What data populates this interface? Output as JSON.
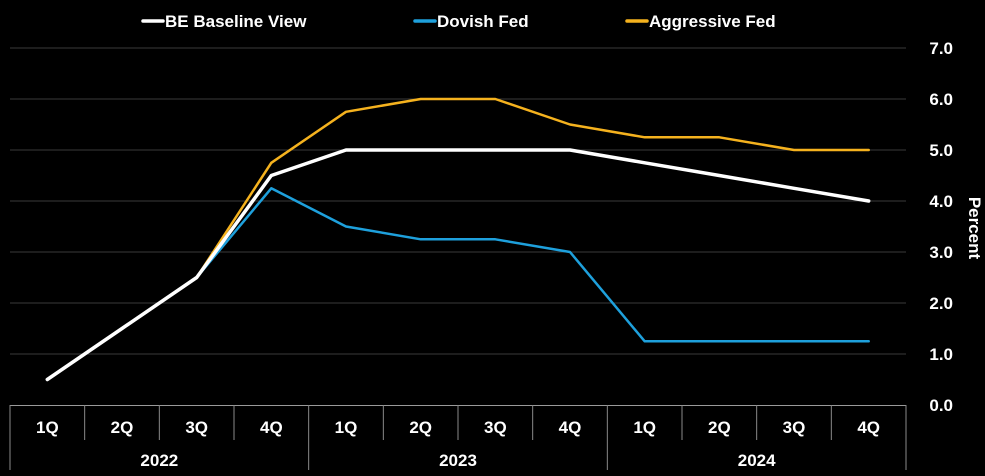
{
  "chart_data": {
    "type": "line",
    "ylabel": "Percent",
    "ylim": [
      0,
      7
    ],
    "y_ticks": [
      "0.0",
      "1.0",
      "2.0",
      "3.0",
      "4.0",
      "5.0",
      "6.0",
      "7.0"
    ],
    "y_axis_side": "right",
    "grid": true,
    "legend_position": "top",
    "categories": [
      "1Q",
      "2Q",
      "3Q",
      "4Q",
      "1Q",
      "2Q",
      "3Q",
      "4Q",
      "1Q",
      "2Q",
      "3Q",
      "4Q"
    ],
    "year_groups": [
      {
        "label": "2022",
        "span": 4
      },
      {
        "label": "2023",
        "span": 4
      },
      {
        "label": "2024",
        "span": 4
      }
    ],
    "series": [
      {
        "name": "BE Baseline View",
        "color": "#ffffff",
        "values": [
          0.5,
          1.5,
          2.5,
          4.5,
          5.0,
          5.0,
          5.0,
          5.0,
          4.75,
          4.5,
          4.25,
          4.0
        ]
      },
      {
        "name": "Dovish Fed",
        "color": "#1ea0dc",
        "values": [
          null,
          null,
          2.5,
          4.25,
          3.5,
          3.25,
          3.25,
          3.0,
          1.25,
          1.25,
          1.25,
          1.25
        ]
      },
      {
        "name": "Aggressive Fed",
        "color": "#f5b21e",
        "values": [
          null,
          null,
          2.5,
          4.75,
          5.75,
          6.0,
          6.0,
          5.5,
          5.25,
          5.25,
          5.0,
          5.0
        ]
      }
    ]
  }
}
